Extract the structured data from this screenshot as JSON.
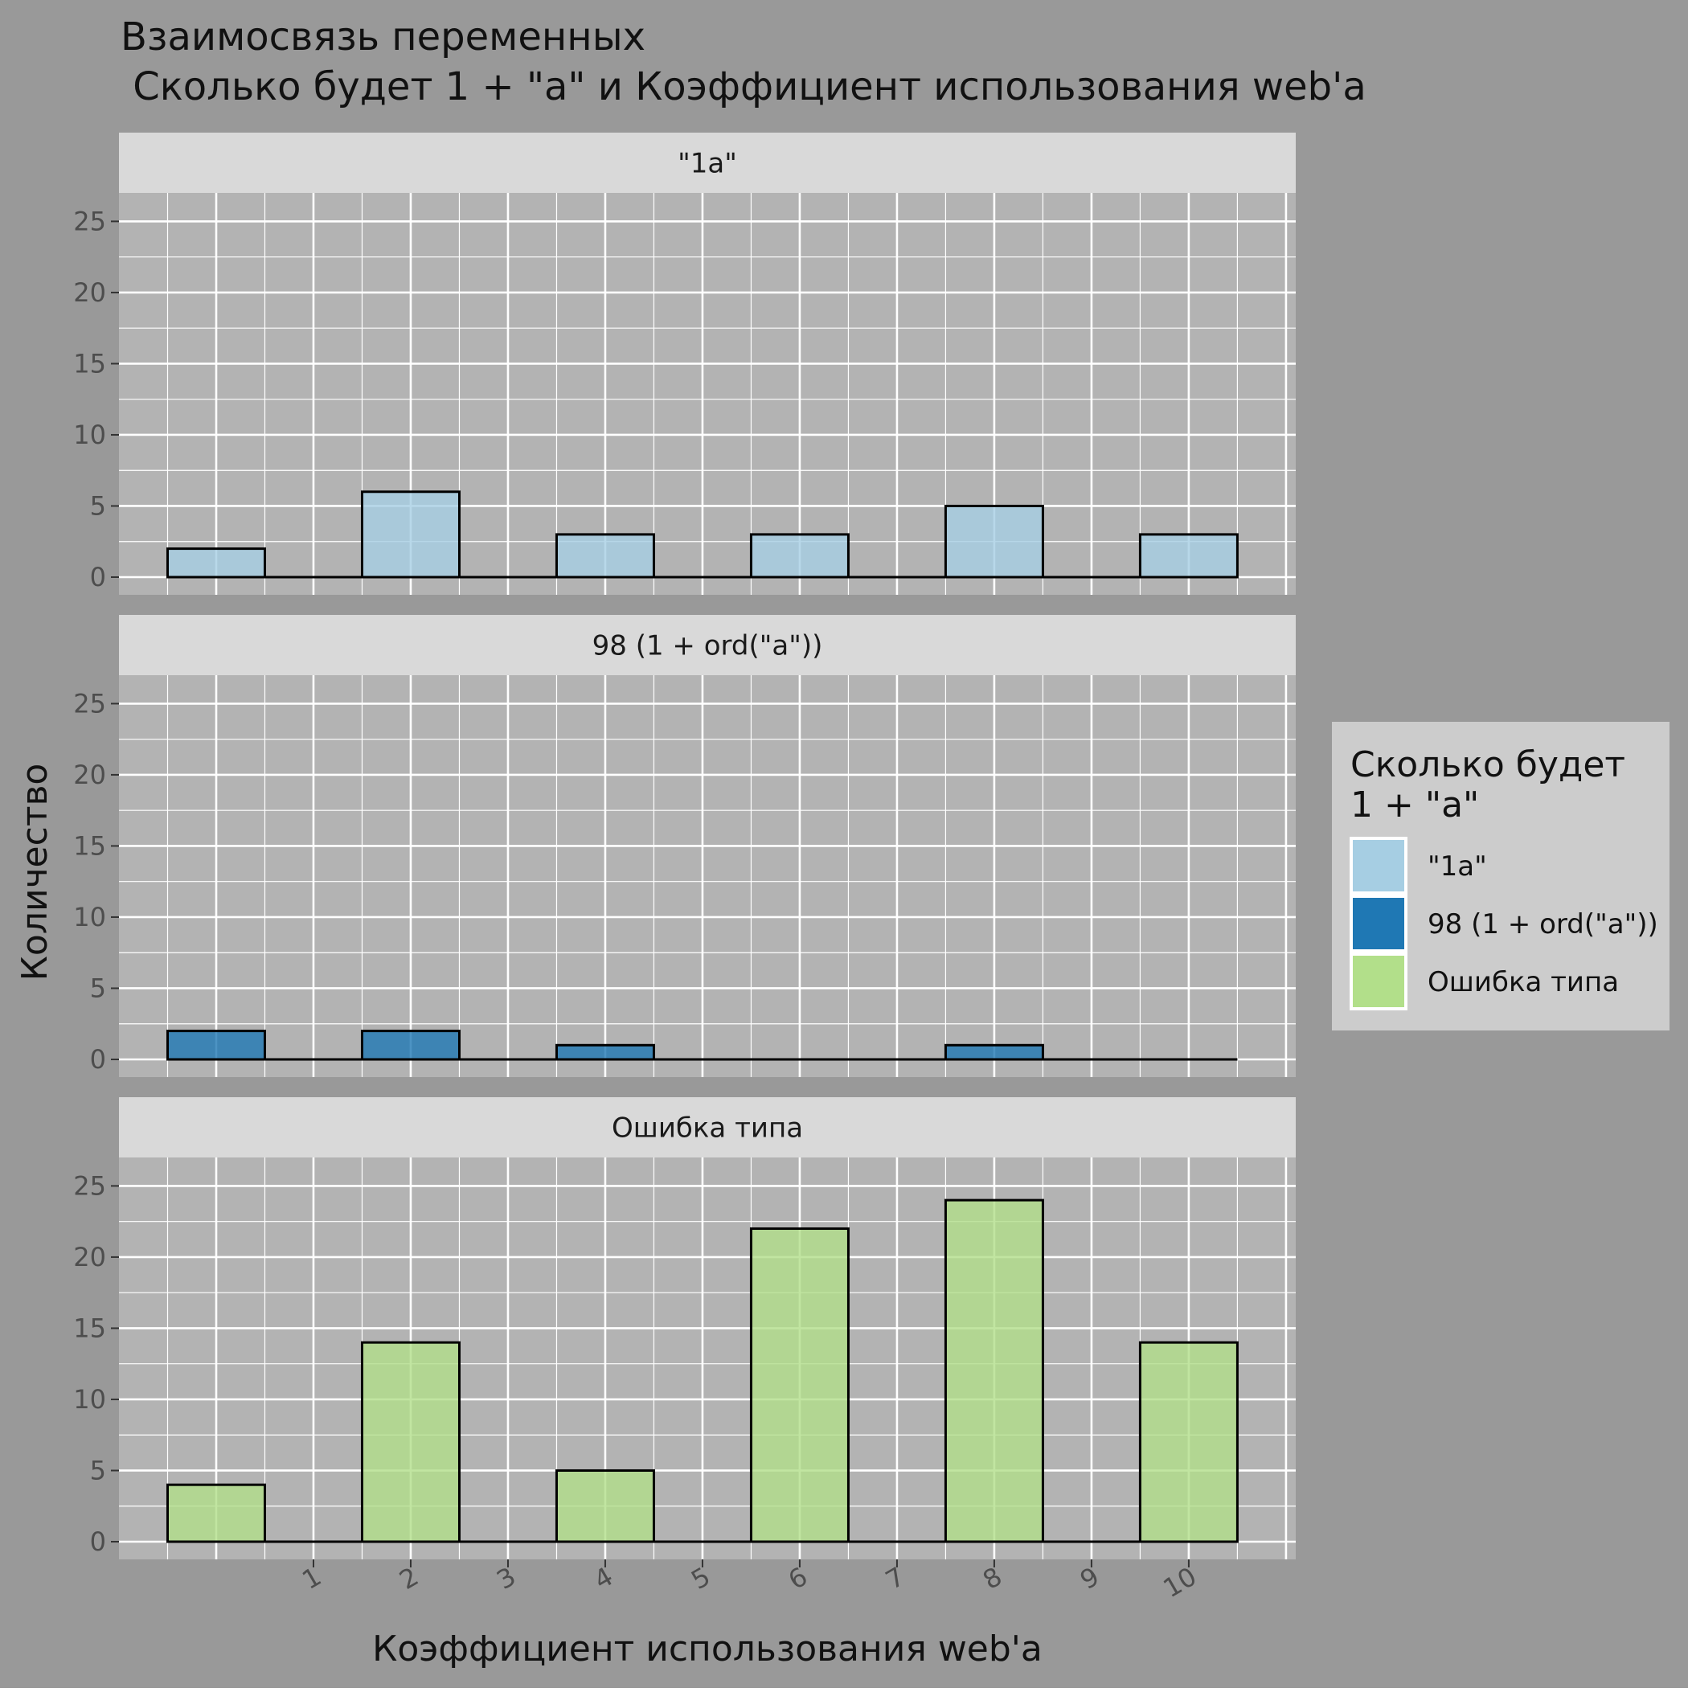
{
  "chart_data": {
    "type": "bar",
    "title_line1": "Взаимосвязь переменных",
    "title_line2": " Сколько будет 1 + \"a\" и Коэффициент использования web'a",
    "xlabel": "Коэффициент использования web'a",
    "ylabel": "Количество",
    "x_tick_labels": [
      "1",
      "2",
      "3",
      "4",
      "5",
      "6",
      "7",
      "8",
      "9",
      "10"
    ],
    "y_ticks": [
      0,
      5,
      10,
      15,
      20,
      25
    ],
    "ylim": [
      0,
      27
    ],
    "bar_categories": [
      0,
      2,
      4,
      6,
      8,
      10
    ],
    "grid": true,
    "legend_title_line1": "Сколько будет",
    "legend_title_line2": "1 + \"a\"",
    "legend_position": "right",
    "colors": {
      "plot_background": "#b3b3b3",
      "outer_background": "#999999",
      "strip_background": "#d9d9d9",
      "legend_background": "#cccccc",
      "grid": "#ffffff"
    },
    "series": [
      {
        "name": "\"1a\"",
        "color": "#a6cee3",
        "values": [
          2,
          6,
          3,
          3,
          5,
          3
        ]
      },
      {
        "name": "98 (1 + ord(\"a\"))",
        "color": "#1f78b4",
        "values": [
          2,
          2,
          1,
          0,
          1,
          0
        ]
      },
      {
        "name": "Ошибка типа",
        "color": "#b2df8a",
        "values": [
          4,
          14,
          5,
          22,
          24,
          14
        ]
      }
    ]
  }
}
